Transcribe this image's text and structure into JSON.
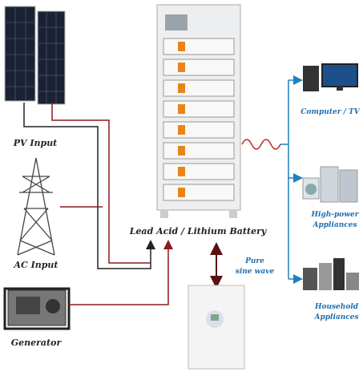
{
  "sources": {
    "pv": "PV Input",
    "ac": "AC Input",
    "generator": "Generator"
  },
  "battery": "Lead Acid / Lithium Battery",
  "inverter": {
    "line1": "Pure",
    "line2": "sine wave"
  },
  "loads": [
    {
      "line1": "Computer / TV"
    },
    {
      "line1": "High-power",
      "line2": "Appliances"
    },
    {
      "line1": "Household",
      "line2": "Appliances"
    }
  ]
}
